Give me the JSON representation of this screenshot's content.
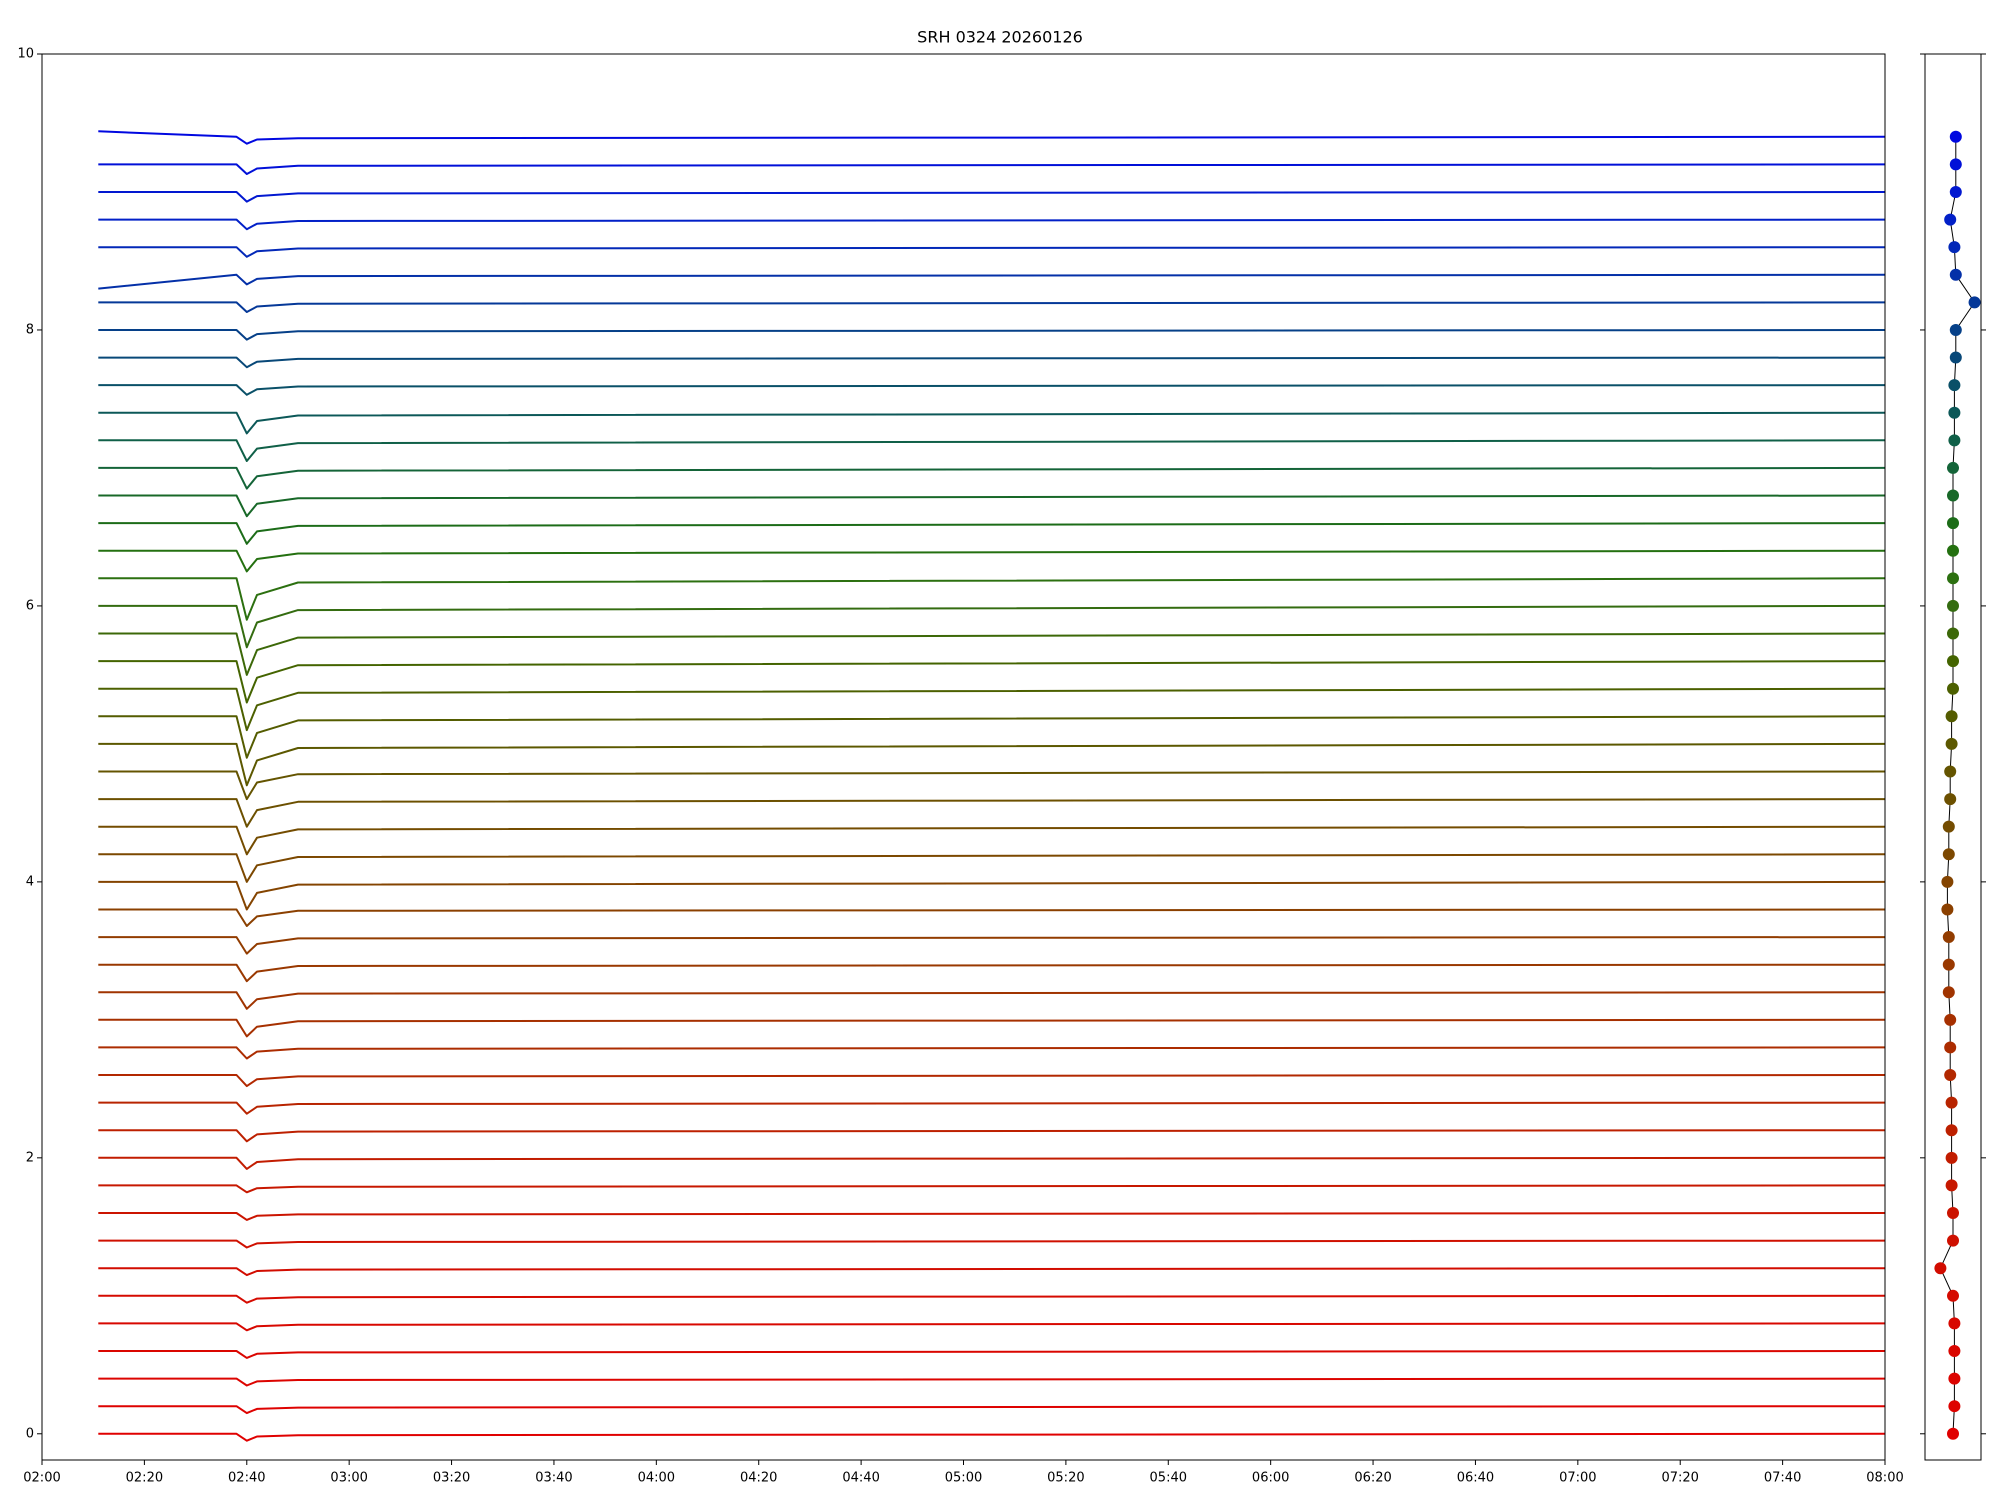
{
  "chart_data": [
    {
      "type": "line",
      "title": "SRH 0324 20260126",
      "x": [
        "02:11",
        "02:38",
        "02:40",
        "02:42",
        "02:50",
        "08:00"
      ],
      "xlim": [
        "02:00",
        "08:00"
      ],
      "xticks": [
        "02:00",
        "02:20",
        "02:40",
        "03:00",
        "03:20",
        "03:40",
        "04:00",
        "04:20",
        "04:40",
        "05:00",
        "05:20",
        "05:40",
        "06:00",
        "06:20",
        "06:40",
        "07:00",
        "07:20",
        "07:40",
        "08:00"
      ],
      "ylim": [
        -0.19,
        10
      ],
      "yticks": [
        0,
        2,
        4,
        6,
        8,
        10
      ],
      "series": [
        {
          "color": "#e00000",
          "values": [
            0,
            0,
            -0.05,
            -0.02,
            -0.01,
            0
          ]
        },
        {
          "color": "#de0200",
          "values": [
            0.2,
            0.2,
            0.15,
            0.18,
            0.19,
            0.2
          ]
        },
        {
          "color": "#dc0400",
          "values": [
            0.4,
            0.4,
            0.35,
            0.38,
            0.39,
            0.4
          ]
        },
        {
          "color": "#da0600",
          "values": [
            0.6,
            0.6,
            0.55,
            0.58,
            0.59,
            0.6
          ]
        },
        {
          "color": "#d80800",
          "values": [
            0.8,
            0.8,
            0.75,
            0.78,
            0.79,
            0.8
          ]
        },
        {
          "color": "#d50a00",
          "values": [
            1,
            1,
            0.95,
            0.98,
            0.99,
            1
          ]
        },
        {
          "color": "#d20c00",
          "values": [
            1.2,
            1.2,
            1.15,
            1.18,
            1.19,
            1.2
          ]
        },
        {
          "color": "#cf1000",
          "values": [
            1.4,
            1.4,
            1.35,
            1.38,
            1.39,
            1.4
          ]
        },
        {
          "color": "#cb1400",
          "values": [
            1.6,
            1.6,
            1.55,
            1.58,
            1.59,
            1.6
          ]
        },
        {
          "color": "#c71800",
          "values": [
            1.8,
            1.8,
            1.75,
            1.78,
            1.79,
            1.8
          ]
        },
        {
          "color": "#c21c00",
          "values": [
            2,
            2,
            1.92,
            1.97,
            1.99,
            2
          ]
        },
        {
          "color": "#bd2000",
          "values": [
            2.2,
            2.2,
            2.12,
            2.17,
            2.19,
            2.2
          ]
        },
        {
          "color": "#b82400",
          "values": [
            2.4,
            2.4,
            2.32,
            2.37,
            2.39,
            2.4
          ]
        },
        {
          "color": "#b22800",
          "values": [
            2.6,
            2.6,
            2.52,
            2.57,
            2.59,
            2.6
          ]
        },
        {
          "color": "#ac2c00",
          "values": [
            2.8,
            2.8,
            2.72,
            2.77,
            2.79,
            2.8
          ]
        },
        {
          "color": "#a63000",
          "values": [
            3,
            3,
            2.88,
            2.95,
            2.99,
            3
          ]
        },
        {
          "color": "#a03400",
          "values": [
            3.2,
            3.2,
            3.08,
            3.15,
            3.19,
            3.2
          ]
        },
        {
          "color": "#993800",
          "values": [
            3.4,
            3.4,
            3.28,
            3.35,
            3.39,
            3.4
          ]
        },
        {
          "color": "#923c00",
          "values": [
            3.6,
            3.6,
            3.48,
            3.55,
            3.59,
            3.6
          ]
        },
        {
          "color": "#8b4000",
          "values": [
            3.8,
            3.8,
            3.68,
            3.75,
            3.79,
            3.8
          ]
        },
        {
          "color": "#844400",
          "values": [
            4,
            4,
            3.8,
            3.92,
            3.98,
            4
          ]
        },
        {
          "color": "#7c4800",
          "values": [
            4.2,
            4.2,
            4,
            4.12,
            4.18,
            4.2
          ]
        },
        {
          "color": "#744c00",
          "values": [
            4.4,
            4.4,
            4.2,
            4.32,
            4.38,
            4.4
          ]
        },
        {
          "color": "#6c5000",
          "values": [
            4.6,
            4.6,
            4.4,
            4.52,
            4.58,
            4.6
          ]
        },
        {
          "color": "#645400",
          "values": [
            4.8,
            4.8,
            4.6,
            4.72,
            4.78,
            4.8
          ]
        },
        {
          "color": "#5c5800",
          "values": [
            5,
            5,
            4.7,
            4.88,
            4.97,
            5
          ]
        },
        {
          "color": "#545c00",
          "values": [
            5.2,
            5.2,
            4.9,
            5.08,
            5.17,
            5.2
          ]
        },
        {
          "color": "#4c6000",
          "values": [
            5.4,
            5.4,
            5.1,
            5.28,
            5.37,
            5.4
          ]
        },
        {
          "color": "#446400",
          "values": [
            5.6,
            5.6,
            5.3,
            5.48,
            5.57,
            5.6
          ]
        },
        {
          "color": "#3c6808",
          "values": [
            5.8,
            5.8,
            5.5,
            5.68,
            5.77,
            5.8
          ]
        },
        {
          "color": "#346c10",
          "values": [
            6,
            6,
            5.7,
            5.88,
            5.97,
            6
          ]
        },
        {
          "color": "#2c7010",
          "values": [
            6.2,
            6.2,
            5.9,
            6.08,
            6.17,
            6.2
          ]
        },
        {
          "color": "#247010",
          "values": [
            6.4,
            6.4,
            6.25,
            6.34,
            6.38,
            6.4
          ]
        },
        {
          "color": "#1c6c18",
          "values": [
            6.6,
            6.6,
            6.45,
            6.54,
            6.58,
            6.6
          ]
        },
        {
          "color": "#186828",
          "values": [
            6.8,
            6.8,
            6.65,
            6.74,
            6.78,
            6.8
          ]
        },
        {
          "color": "#146438",
          "values": [
            7,
            7,
            6.85,
            6.94,
            6.98,
            7
          ]
        },
        {
          "color": "#106048",
          "values": [
            7.2,
            7.2,
            7.05,
            7.14,
            7.18,
            7.2
          ]
        },
        {
          "color": "#0c5858",
          "values": [
            7.4,
            7.4,
            7.25,
            7.34,
            7.38,
            7.4
          ]
        },
        {
          "color": "#0a5068",
          "values": [
            7.6,
            7.6,
            7.53,
            7.57,
            7.59,
            7.6
          ]
        },
        {
          "color": "#084878",
          "values": [
            7.8,
            7.8,
            7.73,
            7.77,
            7.79,
            7.8
          ]
        },
        {
          "color": "#064088",
          "values": [
            8,
            8,
            7.93,
            7.97,
            7.99,
            8
          ]
        },
        {
          "color": "#053898",
          "values": [
            8.2,
            8.2,
            8.13,
            8.17,
            8.19,
            8.2
          ]
        },
        {
          "color": "#0430a8",
          "values": [
            8.3,
            8.4,
            8.33,
            8.37,
            8.39,
            8.4
          ]
        },
        {
          "color": "#0328b8",
          "values": [
            8.6,
            8.6,
            8.53,
            8.57,
            8.59,
            8.6
          ]
        },
        {
          "color": "#0220c8",
          "values": [
            8.8,
            8.8,
            8.73,
            8.77,
            8.79,
            8.8
          ]
        },
        {
          "color": "#0218d0",
          "values": [
            9,
            9,
            8.93,
            8.97,
            8.99,
            9
          ]
        },
        {
          "color": "#0110d8",
          "values": [
            9.2,
            9.2,
            9.13,
            9.17,
            9.19,
            9.2
          ]
        },
        {
          "color": "#0008e0",
          "values": [
            9.44,
            9.4,
            9.35,
            9.38,
            9.39,
            9.4
          ]
        }
      ]
    },
    {
      "type": "line",
      "line_color": "#000000",
      "x": [
        0,
        0.05,
        0.05,
        0.05,
        0.05,
        0,
        -0.45,
        0,
        0,
        -0.05,
        -0.05,
        -0.05,
        -0.05,
        -0.1,
        -0.1,
        -0.1,
        -0.15,
        -0.15,
        -0.15,
        -0.2,
        -0.2,
        -0.15,
        -0.15,
        -0.1,
        -0.1,
        -0.05,
        -0.05,
        0,
        0,
        0,
        0,
        0,
        0,
        0,
        0,
        0,
        0.05,
        0.05,
        0.05,
        0.1,
        0.1,
        0.77,
        0.1,
        0.05,
        -0.1,
        0.1,
        0.1,
        0.1
      ],
      "values": [
        0,
        0.2,
        0.4,
        0.6,
        0.8,
        1,
        1.2,
        1.4,
        1.6,
        1.8,
        2,
        2.2,
        2.4,
        2.6,
        2.8,
        3,
        3.2,
        3.4,
        3.6,
        3.8,
        4,
        4.2,
        4.4,
        4.6,
        4.8,
        5,
        5.2,
        5.4,
        5.6,
        5.8,
        6,
        6.2,
        6.4,
        6.6,
        6.8,
        7,
        7.2,
        7.4,
        7.6,
        7.8,
        8,
        8.2,
        8.4,
        8.6,
        8.8,
        9,
        9.2,
        9.4
      ],
      "xlim": [
        -1,
        1
      ],
      "ylim": [
        -0.19,
        10
      ],
      "yticks": [
        0,
        2,
        4,
        6,
        8,
        10
      ]
    }
  ]
}
